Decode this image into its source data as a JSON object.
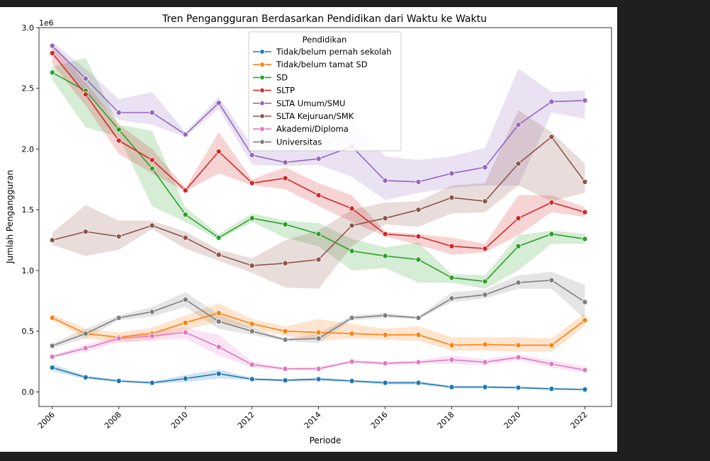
{
  "chart_data": {
    "type": "line",
    "title": "Tren Pengangguran Berdasarkan Pendidikan dari Waktu ke Waktu",
    "xlabel": "Periode",
    "ylabel": "Jumlah Pengangguran",
    "y_offset_text": "1e6",
    "xlim": [
      2005.6,
      2022.8
    ],
    "ylim": [
      -120000,
      3000000
    ],
    "x_ticks": [
      2006,
      2008,
      2010,
      2012,
      2014,
      2016,
      2018,
      2020,
      2022
    ],
    "y_ticks": [
      0.0,
      0.5,
      1.0,
      1.5,
      2.0,
      2.5,
      3.0
    ],
    "y_tick_labels": [
      "0.0",
      "0.5",
      "1.0",
      "1.5",
      "2.0",
      "2.5",
      "3.0"
    ],
    "legend_title": "Pendidikan",
    "legend_position": "upper center",
    "grid": false,
    "x": [
      2006,
      2007,
      2008,
      2009,
      2010,
      2011,
      2012,
      2013,
      2014,
      2015,
      2016,
      2017,
      2018,
      2019,
      2020,
      2021,
      2022
    ],
    "series": [
      {
        "name": "Tidak/belum pernah sekolah",
        "color": "#1f77b4",
        "values": [
          200000,
          120000,
          90000,
          75000,
          110000,
          150000,
          105000,
          95000,
          105000,
          90000,
          75000,
          75000,
          40000,
          40000,
          35000,
          25000,
          20000
        ],
        "lower": [
          170000,
          105000,
          80000,
          65000,
          80000,
          110000,
          95000,
          85000,
          90000,
          80000,
          60000,
          60000,
          30000,
          30000,
          25000,
          15000,
          12000
        ],
        "upper": [
          230000,
          135000,
          100000,
          85000,
          140000,
          185000,
          115000,
          105000,
          120000,
          100000,
          90000,
          90000,
          50000,
          50000,
          45000,
          35000,
          28000
        ]
      },
      {
        "name": "Tidak/belum tamat SD",
        "color": "#ff7f0e",
        "values": [
          610000,
          480000,
          450000,
          480000,
          570000,
          650000,
          560000,
          500000,
          490000,
          480000,
          470000,
          470000,
          385000,
          390000,
          385000,
          385000,
          590000
        ],
        "lower": [
          590000,
          440000,
          410000,
          430000,
          510000,
          580000,
          520000,
          460000,
          420000,
          440000,
          430000,
          420000,
          340000,
          340000,
          330000,
          330000,
          540000
        ],
        "upper": [
          640000,
          520000,
          490000,
          530000,
          630000,
          730000,
          600000,
          540000,
          600000,
          560000,
          520000,
          540000,
          450000,
          450000,
          450000,
          440000,
          650000
        ]
      },
      {
        "name": "SD",
        "color": "#2ca02c",
        "values": [
          2630000,
          2480000,
          2160000,
          1840000,
          1460000,
          1270000,
          1430000,
          1380000,
          1300000,
          1160000,
          1120000,
          1090000,
          940000,
          910000,
          1200000,
          1300000,
          1260000
        ],
        "lower": [
          2570000,
          2180000,
          2100000,
          1530000,
          1400000,
          1250000,
          1400000,
          1270000,
          1200000,
          1000000,
          1020000,
          900000,
          900000,
          850000,
          1000000,
          1220000,
          1220000
        ],
        "upper": [
          2680000,
          2750000,
          2200000,
          2150000,
          1520000,
          1300000,
          1470000,
          1410000,
          1390000,
          1260000,
          1190000,
          1230000,
          970000,
          960000,
          1290000,
          1330000,
          1300000
        ]
      },
      {
        "name": "SLTP",
        "color": "#d62728",
        "values": [
          2790000,
          2450000,
          2070000,
          1910000,
          1660000,
          1980000,
          1720000,
          1760000,
          1620000,
          1510000,
          1300000,
          1280000,
          1200000,
          1180000,
          1430000,
          1560000,
          1480000
        ],
        "lower": [
          2700000,
          2360000,
          1960000,
          1800000,
          1650000,
          1800000,
          1700000,
          1670000,
          1530000,
          1400000,
          1280000,
          1210000,
          1130000,
          1150000,
          1290000,
          1480000,
          1440000
        ],
        "upper": [
          2860000,
          2550000,
          2200000,
          2000000,
          1680000,
          2140000,
          1750000,
          1850000,
          1720000,
          1620000,
          1320000,
          1300000,
          1270000,
          1220000,
          1620000,
          1620000,
          1520000
        ]
      },
      {
        "name": "SLTA Umum/SMU",
        "color": "#9467bd",
        "values": [
          2850000,
          2580000,
          2300000,
          2300000,
          2120000,
          2380000,
          1950000,
          1890000,
          1920000,
          2020000,
          1740000,
          1730000,
          1800000,
          1850000,
          2200000,
          2390000,
          2400000
        ],
        "lower": [
          2800000,
          2460000,
          2240000,
          2200000,
          2100000,
          2330000,
          1870000,
          1860000,
          1870000,
          1770000,
          1580000,
          1640000,
          1680000,
          1700000,
          1700000,
          2300000,
          2250000
        ],
        "upper": [
          2880000,
          2660000,
          2410000,
          2470000,
          2140000,
          2430000,
          2030000,
          2220000,
          1990000,
          2250000,
          1940000,
          1910000,
          1940000,
          2010000,
          2660000,
          2470000,
          2480000
        ]
      },
      {
        "name": "SLTA Kejuruan/SMK",
        "color": "#8c564b",
        "values": [
          1250000,
          1320000,
          1280000,
          1370000,
          1270000,
          1130000,
          1040000,
          1060000,
          1090000,
          1370000,
          1430000,
          1500000,
          1600000,
          1570000,
          1880000,
          2100000,
          1730000
        ],
        "lower": [
          1210000,
          1120000,
          1170000,
          1340000,
          1180000,
          1080000,
          980000,
          860000,
          850000,
          1200000,
          1380000,
          1360000,
          1470000,
          1480000,
          1700000,
          1570000,
          1640000
        ],
        "upper": [
          1310000,
          1540000,
          1410000,
          1410000,
          1320000,
          1170000,
          1100000,
          1250000,
          1330000,
          1500000,
          1560000,
          1570000,
          1700000,
          1720000,
          2320000,
          2140000,
          1880000
        ]
      },
      {
        "name": "Akademi/Diploma",
        "color": "#e377c2",
        "values": [
          290000,
          360000,
          440000,
          460000,
          490000,
          370000,
          225000,
          190000,
          190000,
          250000,
          235000,
          245000,
          265000,
          245000,
          285000,
          230000,
          180000
        ],
        "lower": [
          280000,
          330000,
          410000,
          420000,
          440000,
          300000,
          200000,
          180000,
          180000,
          240000,
          220000,
          230000,
          230000,
          220000,
          260000,
          200000,
          160000
        ],
        "upper": [
          300000,
          390000,
          460000,
          500000,
          530000,
          470000,
          250000,
          200000,
          210000,
          260000,
          250000,
          260000,
          300000,
          270000,
          310000,
          260000,
          210000
        ]
      },
      {
        "name": "Universitas",
        "color": "#7f7f7f",
        "values": [
          380000,
          480000,
          610000,
          660000,
          760000,
          580000,
          500000,
          430000,
          440000,
          610000,
          630000,
          610000,
          770000,
          800000,
          900000,
          920000,
          740000
        ],
        "lower": [
          360000,
          440000,
          590000,
          620000,
          700000,
          520000,
          470000,
          420000,
          400000,
          590000,
          610000,
          600000,
          740000,
          770000,
          850000,
          850000,
          600000
        ],
        "upper": [
          400000,
          520000,
          630000,
          700000,
          820000,
          640000,
          530000,
          440000,
          480000,
          630000,
          650000,
          620000,
          820000,
          840000,
          960000,
          990000,
          880000
        ]
      }
    ]
  }
}
